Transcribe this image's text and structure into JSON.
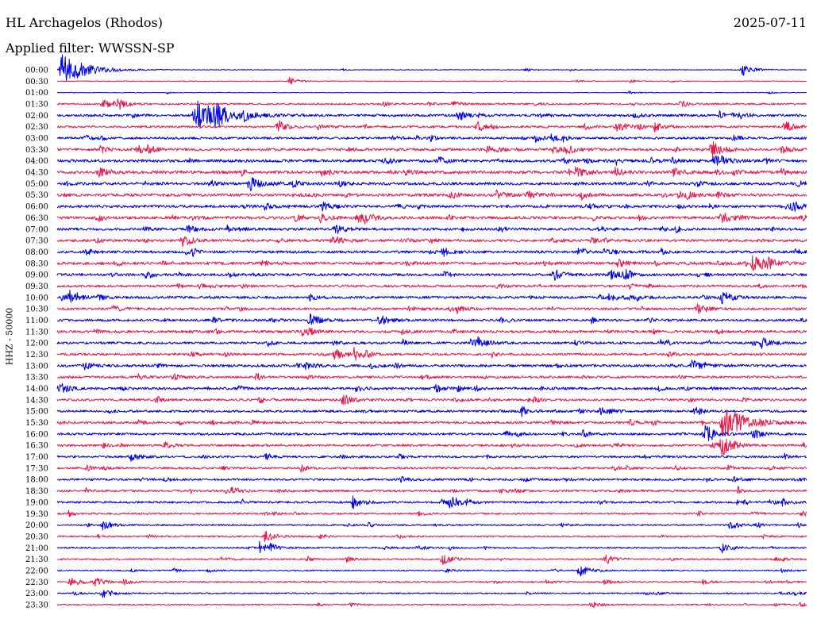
{
  "header": {
    "station": "HL Archagelos (Rhodos)",
    "date": "2025-07-11",
    "filter": "Applied filter: WWSSN-SP"
  },
  "colors": {
    "trace_a": "#0000e6",
    "trace_b": "#e6194b",
    "text": "#000000",
    "background": "#ffffff"
  },
  "chart_data": {
    "type": "line",
    "title": "HL Archagelos (Rhodos)",
    "subtitle": "Applied filter: WWSSN-SP",
    "ylabel": "HHZ - 50000",
    "xlabel": "",
    "grid": false,
    "legend": "none",
    "x_range_minutes": [
      0,
      30
    ],
    "rows": [
      "00:00",
      "00:30",
      "01:00",
      "01:30",
      "02:00",
      "02:30",
      "03:00",
      "03:30",
      "04:00",
      "04:30",
      "05:00",
      "05:30",
      "06:00",
      "06:30",
      "07:00",
      "07:30",
      "08:00",
      "08:30",
      "09:00",
      "09:30",
      "10:00",
      "10:30",
      "11:00",
      "11:30",
      "12:00",
      "12:30",
      "13:00",
      "13:30",
      "14:00",
      "14:30",
      "15:00",
      "15:30",
      "16:00",
      "16:30",
      "17:00",
      "17:30",
      "18:00",
      "18:30",
      "19:00",
      "19:30",
      "20:00",
      "20:30",
      "21:00",
      "21:30",
      "22:00",
      "22:30",
      "23:00",
      "23:30"
    ],
    "row_colors": [
      "blue",
      "red"
    ],
    "noise_level": [
      0.12,
      0.15,
      0.12,
      0.35,
      0.5,
      0.4,
      0.45,
      0.5,
      0.55,
      0.6,
      0.55,
      0.55,
      0.5,
      0.55,
      0.5,
      0.5,
      0.5,
      0.55,
      0.5,
      0.45,
      0.5,
      0.45,
      0.45,
      0.5,
      0.45,
      0.45,
      0.5,
      0.45,
      0.5,
      0.45,
      0.45,
      0.45,
      0.45,
      0.45,
      0.4,
      0.4,
      0.4,
      0.4,
      0.4,
      0.35,
      0.3,
      0.3,
      0.3,
      0.3,
      0.25,
      0.3,
      0.25,
      0.25
    ],
    "events": [
      {
        "row": "00:00",
        "minute": 0.1,
        "amplitude": 2.5
      },
      {
        "row": "00:00",
        "minute": 27.4,
        "amplitude": 1.2
      },
      {
        "row": "00:30",
        "minute": 9.3,
        "amplitude": 0.5
      },
      {
        "row": "01:30",
        "minute": 1.8,
        "amplitude": 0.7
      },
      {
        "row": "01:30",
        "minute": 2.3,
        "amplitude": 0.8
      },
      {
        "row": "02:00",
        "minute": 5.5,
        "amplitude": 2.2
      },
      {
        "row": "02:00",
        "minute": 6.3,
        "amplitude": 0.8
      },
      {
        "row": "02:00",
        "minute": 7.5,
        "amplitude": 0.7
      },
      {
        "row": "02:30",
        "minute": 16.8,
        "amplitude": 0.7
      },
      {
        "row": "02:30",
        "minute": 22.4,
        "amplitude": 0.8
      },
      {
        "row": "02:30",
        "minute": 23.9,
        "amplitude": 0.7
      },
      {
        "row": "02:30",
        "minute": 29.1,
        "amplitude": 0.7
      },
      {
        "row": "03:30",
        "minute": 20.3,
        "amplitude": 0.8
      },
      {
        "row": "03:30",
        "minute": 26.2,
        "amplitude": 1.3
      },
      {
        "row": "04:00",
        "minute": 26.4,
        "amplitude": 1.0
      },
      {
        "row": "04:30",
        "minute": 20.7,
        "amplitude": 0.7
      },
      {
        "row": "05:00",
        "minute": 7.7,
        "amplitude": 1.0
      },
      {
        "row": "05:30",
        "minute": 18.8,
        "amplitude": 0.7
      },
      {
        "row": "06:00",
        "minute": 10.6,
        "amplitude": 0.7
      },
      {
        "row": "06:00",
        "minute": 29.4,
        "amplitude": 0.8
      },
      {
        "row": "06:30",
        "minute": 12.0,
        "amplitude": 0.7
      },
      {
        "row": "06:30",
        "minute": 26.6,
        "amplitude": 0.8
      },
      {
        "row": "07:00",
        "minute": 11.1,
        "amplitude": 0.7
      },
      {
        "row": "07:30",
        "minute": 5.0,
        "amplitude": 0.8
      },
      {
        "row": "07:30",
        "minute": 11.0,
        "amplitude": 0.8
      },
      {
        "row": "08:00",
        "minute": 15.4,
        "amplitude": 0.7
      },
      {
        "row": "08:30",
        "minute": 27.8,
        "amplitude": 0.9
      },
      {
        "row": "08:30",
        "minute": 28.4,
        "amplitude": 0.7
      },
      {
        "row": "09:00",
        "minute": 19.9,
        "amplitude": 0.7
      },
      {
        "row": "09:00",
        "minute": 22.1,
        "amplitude": 0.7
      },
      {
        "row": "10:00",
        "minute": 0.5,
        "amplitude": 0.8
      },
      {
        "row": "10:00",
        "minute": 26.6,
        "amplitude": 0.9
      },
      {
        "row": "10:30",
        "minute": 25.6,
        "amplitude": 0.8
      },
      {
        "row": "11:00",
        "minute": 10.1,
        "amplitude": 0.9
      },
      {
        "row": "11:00",
        "minute": 12.9,
        "amplitude": 0.8
      },
      {
        "row": "12:00",
        "minute": 16.8,
        "amplitude": 0.8
      },
      {
        "row": "12:00",
        "minute": 28.2,
        "amplitude": 0.7
      },
      {
        "row": "12:30",
        "minute": 11.1,
        "amplitude": 0.7
      },
      {
        "row": "13:00",
        "minute": 25.4,
        "amplitude": 0.8
      },
      {
        "row": "14:00",
        "minute": 0.1,
        "amplitude": 0.7
      },
      {
        "row": "14:30",
        "minute": 11.4,
        "amplitude": 0.8
      },
      {
        "row": "15:00",
        "minute": 21.7,
        "amplitude": 0.7
      },
      {
        "row": "15:30",
        "minute": 26.6,
        "amplitude": 2.2
      },
      {
        "row": "16:00",
        "minute": 25.9,
        "amplitude": 1.3
      },
      {
        "row": "16:30",
        "minute": 26.6,
        "amplitude": 1.4
      },
      {
        "row": "17:00",
        "minute": 2.9,
        "amplitude": 0.7
      },
      {
        "row": "18:30",
        "minute": 6.8,
        "amplitude": 0.8
      },
      {
        "row": "19:00",
        "minute": 11.8,
        "amplitude": 1.0
      },
      {
        "row": "19:00",
        "minute": 15.7,
        "amplitude": 0.8
      },
      {
        "row": "20:00",
        "minute": 1.8,
        "amplitude": 0.7
      },
      {
        "row": "20:00",
        "minute": 26.9,
        "amplitude": 0.6
      },
      {
        "row": "20:30",
        "minute": 8.3,
        "amplitude": 0.8
      },
      {
        "row": "21:00",
        "minute": 8.1,
        "amplitude": 0.8
      },
      {
        "row": "21:00",
        "minute": 26.6,
        "amplitude": 0.8
      },
      {
        "row": "21:30",
        "minute": 15.4,
        "amplitude": 0.8
      },
      {
        "row": "21:30",
        "minute": 21.9,
        "amplitude": 0.8
      },
      {
        "row": "22:00",
        "minute": 20.9,
        "amplitude": 0.9
      },
      {
        "row": "22:30",
        "minute": 0.5,
        "amplitude": 0.8
      },
      {
        "row": "22:30",
        "minute": 1.5,
        "amplitude": 0.6
      },
      {
        "row": "23:00",
        "minute": 1.8,
        "amplitude": 0.7
      },
      {
        "row": "23:30",
        "minute": 21.4,
        "amplitude": 0.4
      }
    ]
  }
}
